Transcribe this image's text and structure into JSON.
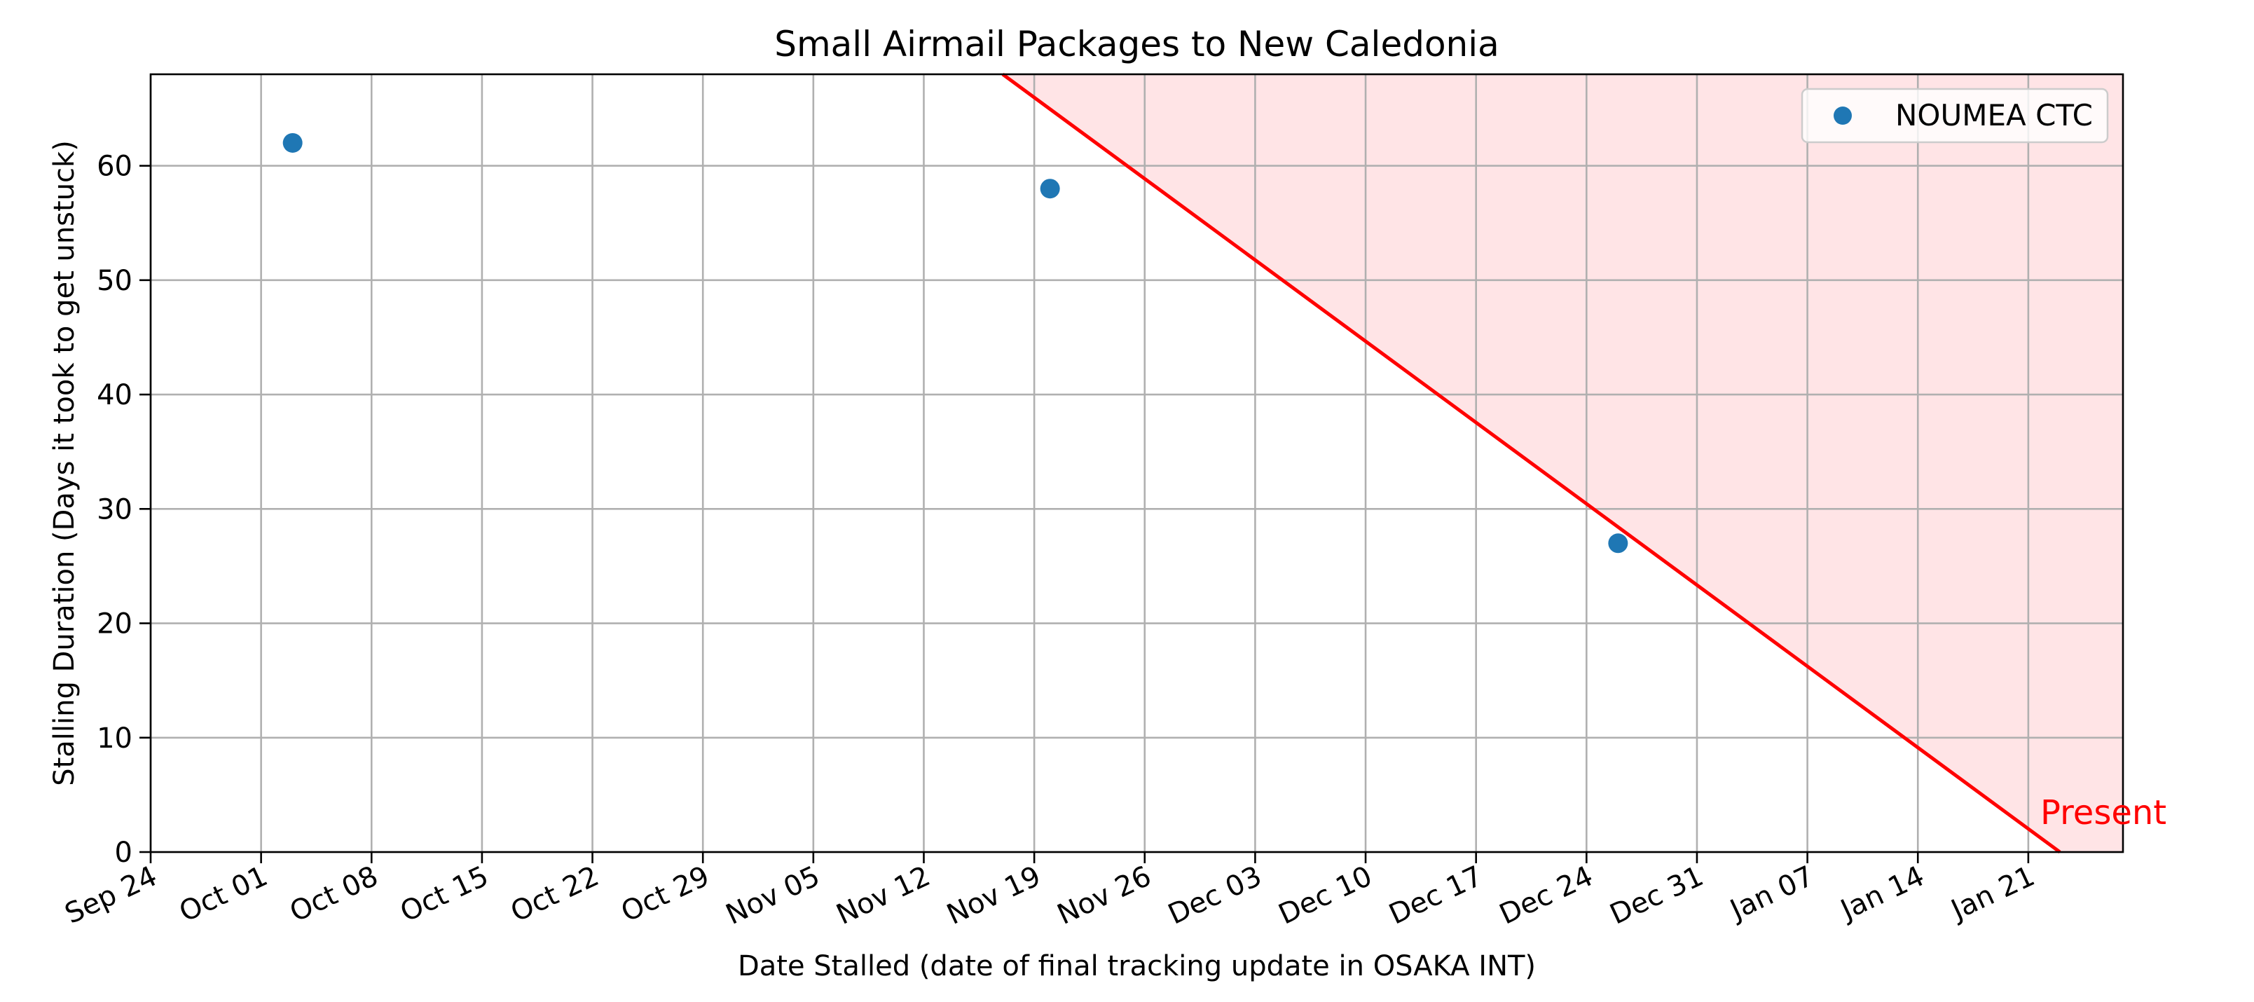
{
  "chart_data": {
    "type": "scatter",
    "title": "Small Airmail Packages to New Caledonia",
    "xlabel": "Date Stalled (date of final tracking update in OSAKA INT)",
    "ylabel": "Stalling Duration (Days it took to get unstuck)",
    "x_axis_type": "date",
    "xlim": [
      "2023-09-24",
      "2024-01-27"
    ],
    "ylim": [
      0,
      68
    ],
    "x_ticks": [
      "2023-09-24",
      "2023-10-01",
      "2023-10-08",
      "2023-10-15",
      "2023-10-22",
      "2023-10-29",
      "2023-11-05",
      "2023-11-12",
      "2023-11-19",
      "2023-11-26",
      "2023-12-03",
      "2023-12-10",
      "2023-12-17",
      "2023-12-24",
      "2023-12-31",
      "2024-01-07",
      "2024-01-14",
      "2024-01-21"
    ],
    "x_tick_labels": [
      "Sep 24",
      "Oct 01",
      "Oct 08",
      "Oct 15",
      "Oct 22",
      "Oct 29",
      "Nov 05",
      "Nov 12",
      "Nov 19",
      "Nov 26",
      "Dec 03",
      "Dec 10",
      "Dec 17",
      "Dec 24",
      "Dec 31",
      "Jan 07",
      "Jan 14",
      "Jan 21"
    ],
    "y_ticks": [
      0,
      10,
      20,
      30,
      40,
      50,
      60
    ],
    "y_tick_labels": [
      "0",
      "10",
      "20",
      "30",
      "40",
      "50",
      "60"
    ],
    "grid": true,
    "legend_position": "top-right",
    "series": [
      {
        "name": "NOUMEA CTC",
        "color": "#1f77b4",
        "points": [
          {
            "x": "2023-10-03",
            "y": 62
          },
          {
            "x": "2023-11-20",
            "y": 58
          },
          {
            "x": "2023-12-26",
            "y": 27
          }
        ]
      }
    ],
    "present_line": {
      "color": "#ff0000",
      "shade_color": "#ffe4e6",
      "label": "Present",
      "points": [
        {
          "x": "2023-11-17",
          "y": 68
        },
        {
          "x": "2024-01-23",
          "y": 0
        }
      ]
    }
  }
}
